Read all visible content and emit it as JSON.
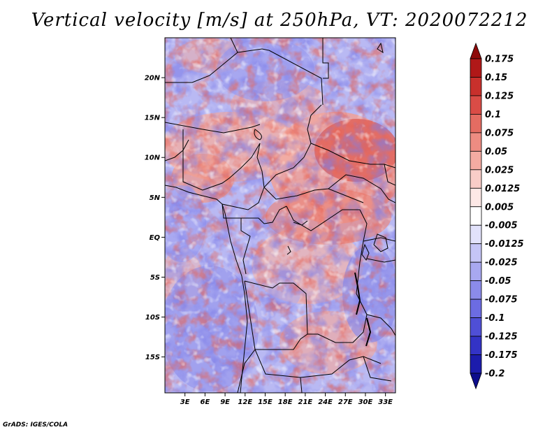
{
  "title": "Vertical velocity [m/s] at 250hPa, VT: 2020072212",
  "credit": "GrADS: IGES/COLA",
  "map": {
    "lat_labels": [
      "20N",
      "15N",
      "10N",
      "5N",
      "EQ",
      "5S",
      "10S",
      "15S"
    ],
    "lat_values": [
      20,
      15,
      10,
      5,
      0,
      -5,
      -10,
      -15
    ],
    "lon_labels": [
      "3E",
      "6E",
      "9E",
      "12E",
      "15E",
      "18E",
      "21E",
      "24E",
      "27E",
      "30E",
      "33E"
    ],
    "lon_values": [
      3,
      6,
      9,
      12,
      15,
      18,
      21,
      24,
      27,
      30,
      33
    ],
    "lon_range": [
      0,
      34.5
    ],
    "lat_range": [
      -19.5,
      25
    ]
  },
  "colorbar": {
    "labels": [
      "0.175",
      "0.15",
      "0.125",
      "0.1",
      "0.075",
      "0.05",
      "0.025",
      "0.0125",
      "0.005",
      "-0.005",
      "-0.0125",
      "-0.025",
      "-0.05",
      "-0.075",
      "-0.1",
      "-0.125",
      "-0.175",
      "-0.2"
    ],
    "colors": [
      "#8e0a0a",
      "#b01818",
      "#c8302c",
      "#da4c46",
      "#e46c62",
      "#ed8c82",
      "#f4aba2",
      "#f9cdc8",
      "#fde8e6",
      "#ffffff",
      "#e2e2fb",
      "#c5c5f6",
      "#a8a8f0",
      "#8b8bea",
      "#6c6ce2",
      "#4f4fd6",
      "#3333c6",
      "#1c1cac",
      "#0d0d8c"
    ]
  }
}
